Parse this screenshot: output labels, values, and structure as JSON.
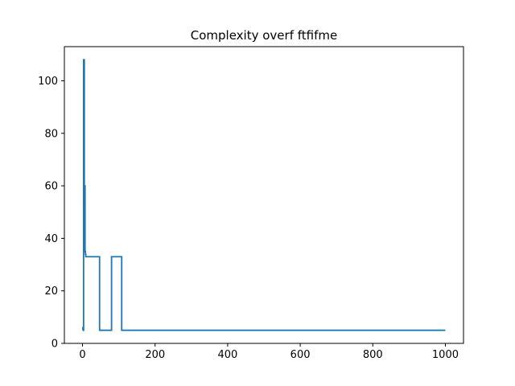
{
  "chart_data": {
    "type": "line",
    "title": "Complexity overf ftfifme",
    "xlabel": "",
    "ylabel": "",
    "xlim": [
      -50,
      1050
    ],
    "ylim": [
      0,
      113
    ],
    "grid": false,
    "xticks": [
      0,
      200,
      400,
      600,
      800,
      1000
    ],
    "yticks": [
      0,
      20,
      40,
      60,
      80,
      100
    ],
    "series": [
      {
        "color": "#1f77b4",
        "x": [
          0,
          1,
          1,
          2,
          2,
          3,
          3,
          5,
          5,
          7,
          7,
          8,
          8,
          9,
          9,
          47,
          47,
          80,
          80,
          108,
          108,
          1000
        ],
        "y": [
          5,
          5,
          6,
          6,
          5,
          5,
          108,
          108,
          60,
          60,
          35,
          35,
          34,
          34,
          33,
          33,
          5,
          5,
          33,
          33,
          5,
          5
        ]
      }
    ]
  }
}
